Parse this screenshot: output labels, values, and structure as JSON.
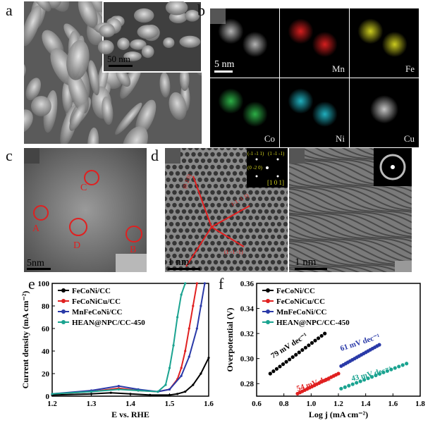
{
  "panels": {
    "a": {
      "label": "a",
      "inset_scale": "50 nm"
    },
    "b": {
      "label": "b",
      "scale": "5 nm",
      "maps": [
        {
          "element": "",
          "color": "#bdbdbd"
        },
        {
          "element": "Mn",
          "color": "#e02020"
        },
        {
          "element": "Fe",
          "color": "#d6d620"
        },
        {
          "element": "Co",
          "color": "#2fb84a"
        },
        {
          "element": "Ni",
          "color": "#22b8c8"
        },
        {
          "element": "Cu",
          "color": "#cfcfcf"
        }
      ]
    },
    "c": {
      "label": "c",
      "scale": "5nm",
      "regions": [
        "A",
        "B",
        "C",
        "D"
      ]
    },
    "d": {
      "label": "d",
      "scale_left": "1 nm",
      "scale_right": "1 nm",
      "fft_labels": [
        "(-1 -1 1)",
        "(1 -1 -1)",
        "(0 -2 0)",
        "[1 0 1]"
      ],
      "lattice_labels": [
        "(0 2 0)",
        "(-1 -1 1)",
        "(1 -1 -1)"
      ],
      "fft_scale": "5 1/nm"
    }
  },
  "chart_e": {
    "label": "e",
    "ylabel": "Current density (mA cm⁻²)",
    "xlabel": "E vs. RHE",
    "xticks": [
      "1.2",
      "1.3",
      "1.4",
      "1.5",
      "1.6"
    ],
    "yticks": [
      "0",
      "20",
      "40",
      "60",
      "80",
      "100"
    ],
    "legend": [
      "FeCoNi/CC",
      "FeCoNiCu/CC",
      "MnFeCoNi/CC",
      "HEAN@NPC/CC-450"
    ]
  },
  "chart_f": {
    "label": "f",
    "ylabel": "Overpotential (V)",
    "xlabel": "Log j (mA cm⁻²)",
    "xticks": [
      "0.6",
      "0.8",
      "1.0",
      "1.2",
      "1.4",
      "1.6",
      "1.8"
    ],
    "yticks": [
      "0.28",
      "0.30",
      "0.32",
      "0.34",
      "0.36"
    ],
    "legend": [
      "FeCoNi/CC",
      "FeCoNiCu/CC",
      "MnFeCoNi/CC",
      "HEAN@NPC/CC-450"
    ],
    "slopes": [
      "79 mV dec⁻¹",
      "54 mV dec⁻¹",
      "61 mV dec⁻¹",
      "43 mV dec⁻¹"
    ]
  },
  "chart_data": [
    {
      "type": "line",
      "title": "",
      "xlabel": "E vs. RHE",
      "ylabel": "Current density (mA cm⁻²)",
      "xlim": [
        1.2,
        1.6
      ],
      "ylim": [
        0,
        100
      ],
      "series": [
        {
          "name": "FeCoNi/CC",
          "color": "#000000",
          "x": [
            1.2,
            1.3,
            1.35,
            1.4,
            1.45,
            1.5,
            1.52,
            1.54,
            1.56,
            1.58,
            1.6
          ],
          "y": [
            1,
            2,
            3,
            2,
            1,
            1,
            2,
            4,
            10,
            20,
            34
          ]
        },
        {
          "name": "FeCoNiCu/CC",
          "color": "#e02020",
          "x": [
            1.2,
            1.3,
            1.37,
            1.42,
            1.47,
            1.5,
            1.52,
            1.53,
            1.54,
            1.55,
            1.56,
            1.57
          ],
          "y": [
            2,
            4,
            7,
            5,
            4,
            6,
            15,
            25,
            40,
            60,
            80,
            100
          ]
        },
        {
          "name": "MnFeCoNi/CC",
          "color": "#2a3aa8",
          "x": [
            1.2,
            1.3,
            1.37,
            1.42,
            1.47,
            1.5,
            1.53,
            1.55,
            1.57,
            1.58,
            1.59
          ],
          "y": [
            2,
            5,
            9,
            6,
            4,
            6,
            18,
            35,
            60,
            80,
            100
          ]
        },
        {
          "name": "HEAN@NPC/CC-450",
          "color": "#1aa390",
          "x": [
            1.2,
            1.3,
            1.37,
            1.42,
            1.47,
            1.49,
            1.5,
            1.51,
            1.52,
            1.53,
            1.54
          ],
          "y": [
            2,
            4,
            6,
            5,
            4,
            10,
            25,
            45,
            70,
            90,
            100
          ]
        }
      ]
    },
    {
      "type": "scatter",
      "title": "",
      "xlabel": "Log j (mA cm⁻²)",
      "ylabel": "Overpotential (V)",
      "xlim": [
        0.6,
        1.8
      ],
      "ylim": [
        0.27,
        0.36
      ],
      "series": [
        {
          "name": "FeCoNi/CC",
          "color": "#000000",
          "x": [
            0.7,
            1.1
          ],
          "y": [
            0.288,
            0.32
          ]
        },
        {
          "name": "FeCoNiCu/CC",
          "color": "#e02020",
          "x": [
            0.9,
            1.2
          ],
          "y": [
            0.272,
            0.288
          ]
        },
        {
          "name": "MnFeCoNi/CC",
          "color": "#2a3aa8",
          "x": [
            1.22,
            1.5
          ],
          "y": [
            0.294,
            0.311
          ]
        },
        {
          "name": "HEAN@NPC/CC-450",
          "color": "#1aa390",
          "x": [
            1.22,
            1.7
          ],
          "y": [
            0.276,
            0.296
          ]
        }
      ]
    }
  ]
}
